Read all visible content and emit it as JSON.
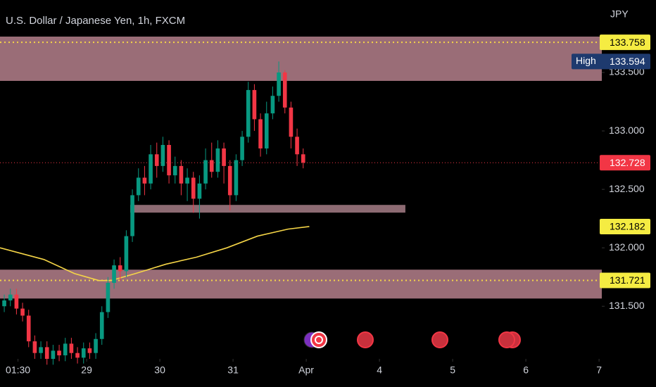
{
  "chart_data": {
    "type": "candlestick",
    "title": "U.S. Dollar / Japanese Yen, 1h, FXCM",
    "currency": "JPY",
    "x": [
      -3,
      -1,
      1,
      3,
      5,
      7,
      9,
      11,
      13,
      15,
      17,
      19,
      21,
      23,
      25,
      27,
      29,
      31,
      33,
      35,
      37,
      39,
      41,
      43,
      45,
      47,
      49,
      51,
      53,
      55,
      57,
      59,
      61,
      63,
      65,
      67,
      69,
      71,
      73,
      75,
      77,
      79,
      81,
      83,
      85,
      87,
      89,
      91,
      93,
      95
    ],
    "open": [
      131.5,
      131.55,
      131.6,
      131.48,
      131.42,
      131.2,
      131.1,
      131.15,
      131.05,
      131.12,
      131.08,
      131.18,
      131.1,
      131.06,
      131.14,
      131.1,
      131.22,
      131.45,
      131.7,
      131.85,
      131.8,
      132.1,
      132.45,
      132.6,
      132.55,
      132.8,
      132.7,
      132.88,
      132.62,
      132.7,
      132.55,
      132.6,
      132.42,
      132.55,
      132.75,
      132.65,
      132.85,
      132.7,
      132.45,
      132.75,
      132.95,
      133.35,
      133.1,
      132.85,
      133.15,
      133.3,
      133.5,
      133.2,
      132.95,
      132.8
    ],
    "high": [
      131.6,
      131.65,
      131.65,
      131.53,
      131.47,
      131.25,
      131.2,
      131.2,
      131.17,
      131.17,
      131.23,
      131.23,
      131.15,
      131.19,
      131.19,
      131.27,
      131.5,
      131.75,
      131.9,
      131.92,
      132.15,
      132.5,
      132.68,
      132.7,
      132.88,
      132.9,
      132.95,
      132.92,
      132.78,
      132.75,
      132.68,
      132.65,
      132.62,
      132.85,
      132.9,
      132.92,
      132.9,
      132.75,
      132.8,
      133.0,
      133.42,
      133.4,
      133.15,
      133.25,
      133.38,
      133.594,
      133.52,
      133.25,
      133.02,
      132.85
    ],
    "low": [
      131.45,
      131.5,
      131.43,
      131.37,
      131.15,
      131.05,
      131.05,
      131.0,
      131.0,
      131.03,
      131.03,
      131.05,
      131.01,
      131.01,
      131.05,
      131.05,
      131.17,
      131.4,
      131.65,
      131.72,
      131.75,
      132.05,
      132.4,
      132.45,
      132.5,
      132.6,
      132.65,
      132.55,
      132.55,
      132.45,
      132.4,
      132.3,
      132.25,
      132.5,
      132.6,
      132.6,
      132.55,
      132.32,
      132.4,
      132.7,
      132.9,
      133.0,
      132.78,
      132.8,
      133.1,
      133.25,
      133.15,
      132.85,
      132.7,
      132.68
    ],
    "close": [
      131.55,
      131.6,
      131.48,
      131.42,
      131.2,
      131.1,
      131.15,
      131.05,
      131.12,
      131.08,
      131.18,
      131.1,
      131.06,
      131.14,
      131.1,
      131.22,
      131.45,
      131.7,
      131.85,
      131.8,
      132.1,
      132.45,
      132.6,
      132.55,
      132.8,
      132.7,
      132.88,
      132.62,
      132.7,
      132.55,
      132.6,
      132.42,
      132.55,
      132.75,
      132.65,
      132.85,
      132.7,
      132.45,
      132.75,
      132.95,
      133.35,
      133.1,
      132.85,
      133.15,
      133.3,
      133.5,
      133.2,
      132.95,
      132.8,
      132.728
    ],
    "up_color": "#089981",
    "down_color": "#f23645",
    "xlim": [
      -4.4,
      192.9
    ],
    "ylim": [
      131.05,
      134.12
    ],
    "xticks": [
      {
        "value": 1.5,
        "label": "01:30"
      },
      {
        "value": 24,
        "label": "29"
      },
      {
        "value": 48,
        "label": "30"
      },
      {
        "value": 72,
        "label": "31"
      },
      {
        "value": 96,
        "label": "Apr"
      },
      {
        "value": 120,
        "label": "4"
      },
      {
        "value": 144,
        "label": "5"
      },
      {
        "value": 168,
        "label": "6"
      },
      {
        "value": 192,
        "label": "7"
      }
    ],
    "yticks": [
      {
        "value": 131.5,
        "label": "131.500"
      },
      {
        "value": 132,
        "label": "132.000"
      },
      {
        "value": 132.5,
        "label": "132.500"
      },
      {
        "value": 133,
        "label": "133.000"
      },
      {
        "value": 133.5,
        "label": "133.500"
      }
    ],
    "moving_average": {
      "color": "#f5d547",
      "x": [
        -4.4,
        10,
        20,
        28,
        32,
        40,
        50,
        60,
        70,
        80,
        90,
        97
      ],
      "values": [
        132.0,
        131.9,
        131.78,
        131.72,
        131.72,
        131.78,
        131.86,
        131.92,
        132.0,
        132.1,
        132.16,
        132.182
      ]
    },
    "zones": [
      {
        "low": 133.428,
        "high": 133.807,
        "line": 133.758,
        "color": "#9a6d77"
      },
      {
        "low": 131.566,
        "high": 131.813,
        "line": 131.721,
        "color": "#9a6d77"
      },
      {
        "low": 132.301,
        "high": 132.367,
        "x_start": 38.3,
        "x_end": 128.5,
        "color": "#8d6b73"
      }
    ],
    "zone_line_color": "#f5d547",
    "price_labels": [
      {
        "value": 133.758,
        "color": "#f5ec42"
      },
      {
        "name": "High",
        "value": 133.594,
        "color": "#1e3a6e"
      },
      {
        "value": 132.728,
        "color": "#f23645",
        "current": true
      },
      {
        "value": 132.182,
        "color": "#f5ec42"
      },
      {
        "value": 131.721,
        "color": "#f5ec42"
      }
    ]
  }
}
